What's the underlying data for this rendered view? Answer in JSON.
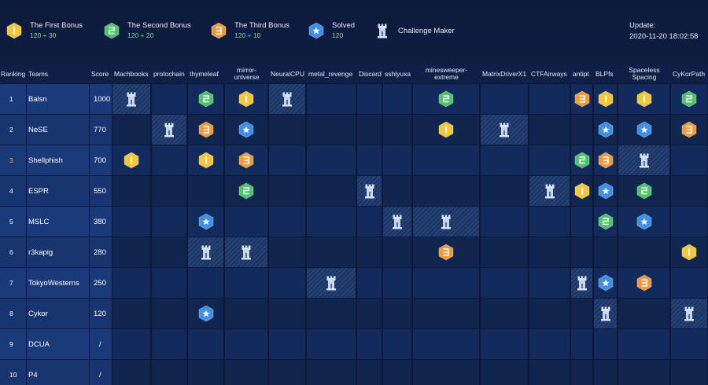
{
  "legend": [
    {
      "label": "The First Bonus",
      "points": "120 + 30",
      "icon": "first-bonus-icon",
      "kind": "first"
    },
    {
      "label": "The Second Bonus",
      "points": "120 + 20",
      "icon": "second-bonus-icon",
      "kind": "second"
    },
    {
      "label": "The Third Bonus",
      "points": "120 + 10",
      "icon": "third-bonus-icon",
      "kind": "third"
    },
    {
      "label": "Solved",
      "points": "120",
      "icon": "solved-icon",
      "kind": "solved"
    },
    {
      "label": "Challenge Maker",
      "points": "",
      "icon": "tower-icon",
      "kind": "maker"
    }
  ],
  "update": {
    "label": "Update:",
    "time": "2020-11-20 18:02:58"
  },
  "colors": {
    "first": "#f4c63a",
    "second": "#4fc46a",
    "third": "#f29a3a",
    "solved": "#3f8fe8",
    "background": "#0c1836"
  },
  "headers": {
    "ranking": "Ranking",
    "teams": "Teams",
    "score": "Score"
  },
  "challenges": [
    {
      "name": "Machbooks"
    },
    {
      "name": "protochain"
    },
    {
      "name": "thymeleaf"
    },
    {
      "name": "mirror-universe",
      "line1": "mirror-",
      "line2": "universe"
    },
    {
      "name": "NeuralCPU"
    },
    {
      "name": "metal_revenge"
    },
    {
      "name": "Discard"
    },
    {
      "name": "sshlyuxa"
    },
    {
      "name": "minesweeper-extreme",
      "line1": "minesweeper-",
      "line2": "extreme"
    },
    {
      "name": "MatrixDriverX1"
    },
    {
      "name": "CTFAirways"
    },
    {
      "name": "antipt"
    },
    {
      "name": "BLPfs"
    },
    {
      "name": "Spaceless Spacing",
      "line1": "Spaceless",
      "line2": "Spacing"
    },
    {
      "name": "CyKorPath"
    }
  ],
  "teams": [
    {
      "rank": "1",
      "name": "Balsn",
      "score": "1000",
      "cells": [
        "maker",
        "",
        "second",
        "first",
        "maker",
        "",
        "",
        "",
        "second",
        "",
        "",
        "third",
        "first",
        "first",
        "second"
      ]
    },
    {
      "rank": "2",
      "name": "NeSE",
      "score": "770",
      "cells": [
        "",
        "maker",
        "third",
        "solved",
        "",
        "",
        "",
        "",
        "first",
        "maker",
        "",
        "",
        "solved",
        "solved",
        "third"
      ]
    },
    {
      "rank": "3",
      "name": "Shellphish",
      "score": "700",
      "cells": [
        "first",
        "",
        "first",
        "third",
        "",
        "",
        "",
        "",
        "",
        "",
        "",
        "second",
        "third",
        "maker",
        ""
      ]
    },
    {
      "rank": "4",
      "name": "ESPR",
      "score": "550",
      "cells": [
        "",
        "",
        "",
        "second",
        "",
        "",
        "maker",
        "",
        "",
        "",
        "maker",
        "first",
        "solved",
        "second",
        ""
      ]
    },
    {
      "rank": "5",
      "name": "MSLC",
      "score": "380",
      "cells": [
        "",
        "",
        "solved",
        "",
        "",
        "",
        "",
        "maker",
        "maker",
        "",
        "",
        "",
        "second",
        "solved",
        ""
      ]
    },
    {
      "rank": "6",
      "name": "r3kapig",
      "score": "280",
      "cells": [
        "",
        "",
        "maker",
        "maker",
        "",
        "",
        "",
        "",
        "third",
        "",
        "",
        "",
        "",
        "",
        "first"
      ]
    },
    {
      "rank": "7",
      "name": "TokyoWesterns",
      "score": "250",
      "cells": [
        "",
        "",
        "",
        "",
        "",
        "maker",
        "",
        "",
        "",
        "",
        "",
        "maker",
        "solved",
        "third",
        ""
      ]
    },
    {
      "rank": "8",
      "name": "Cykor",
      "score": "120",
      "cells": [
        "",
        "",
        "solved",
        "",
        "",
        "",
        "",
        "",
        "",
        "",
        "",
        "",
        "maker",
        "",
        "maker"
      ]
    },
    {
      "rank": "9",
      "name": "DCUA",
      "score": "/",
      "cells": [
        "",
        "",
        "",
        "",
        "",
        "",
        "",
        "",
        "",
        "",
        "",
        "",
        "",
        "",
        ""
      ]
    },
    {
      "rank": "10",
      "name": "P4",
      "score": "/",
      "cells": [
        "",
        "",
        "",
        "",
        "",
        "",
        "",
        "",
        "",
        "",
        "",
        "",
        "",
        "",
        ""
      ]
    }
  ]
}
